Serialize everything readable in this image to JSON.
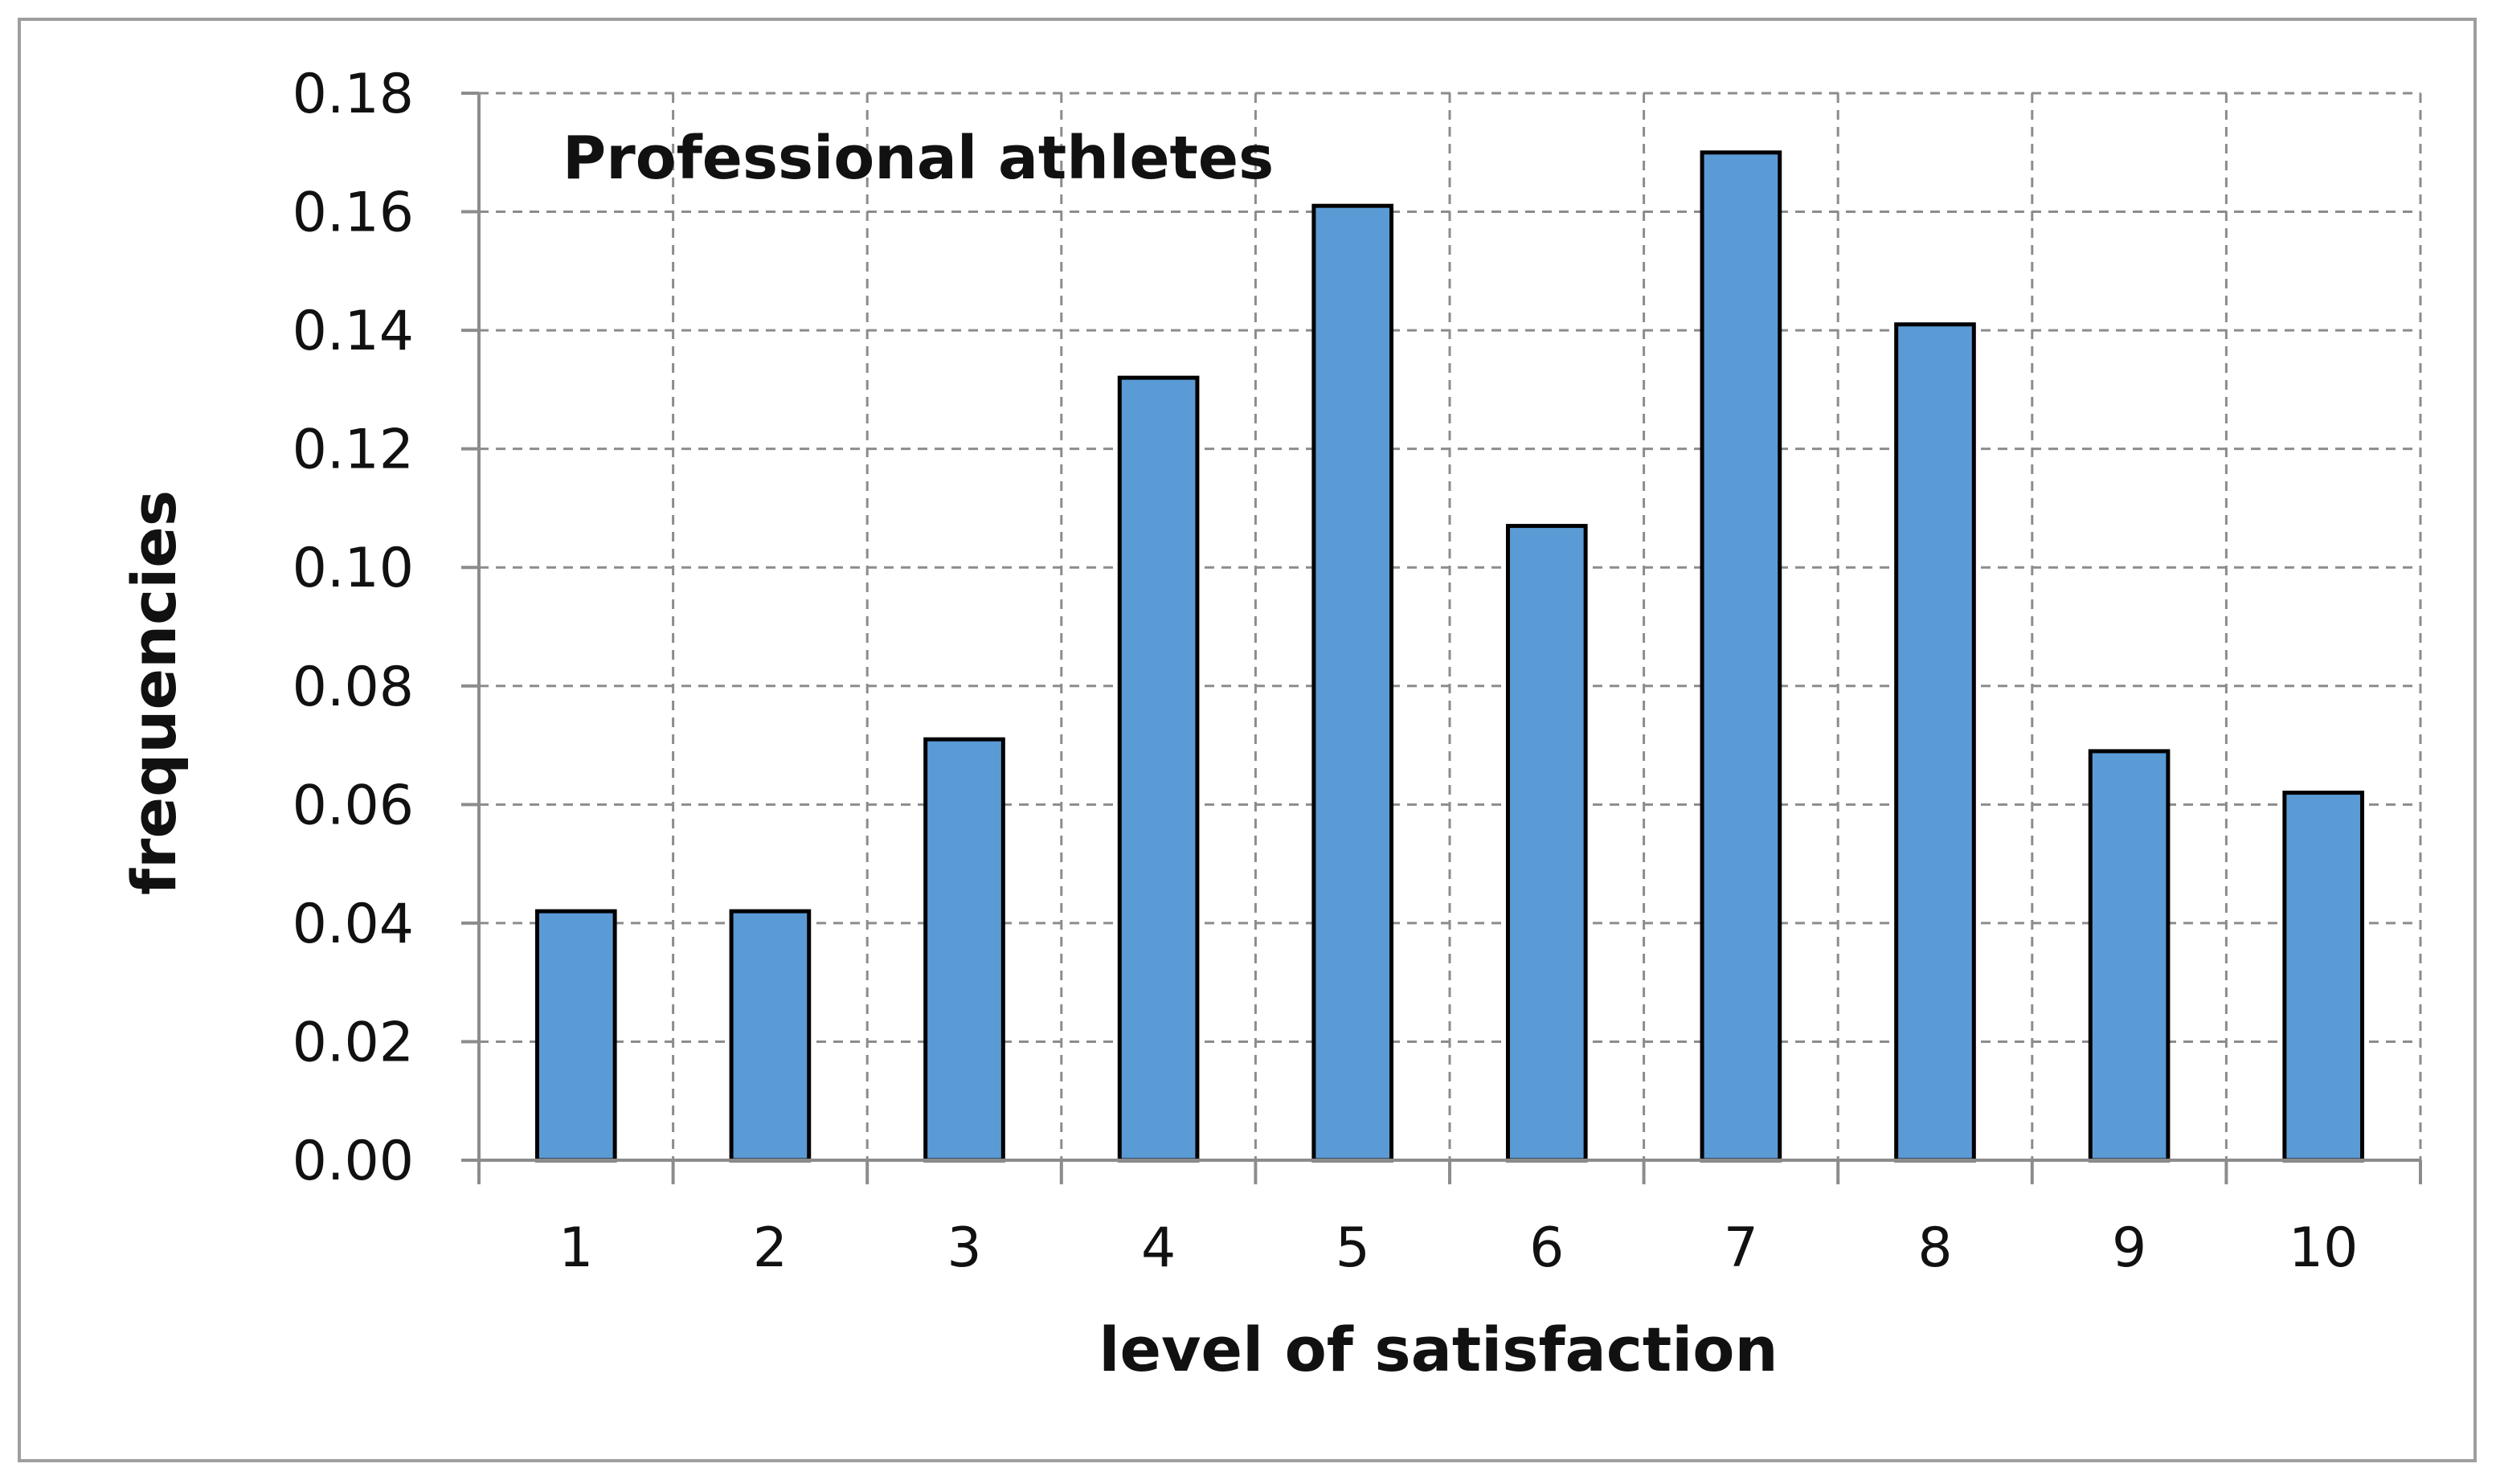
{
  "chart_data": {
    "type": "bar",
    "title": "Professional athletes",
    "xlabel": "level of satisfaction",
    "ylabel": "frequencies",
    "categories": [
      "1",
      "2",
      "3",
      "4",
      "5",
      "6",
      "7",
      "8",
      "9",
      "10"
    ],
    "values": [
      0.042,
      0.042,
      0.071,
      0.132,
      0.161,
      0.107,
      0.17,
      0.141,
      0.069,
      0.062
    ],
    "ylim": [
      0,
      0.18
    ],
    "yticks": [
      "0.00",
      "0.02",
      "0.04",
      "0.06",
      "0.08",
      "0.10",
      "0.12",
      "0.14",
      "0.16",
      "0.18"
    ],
    "grid": true,
    "legend": "none",
    "colors": {
      "bar_fill": "#5b9bd5",
      "bar_stroke": "#000000",
      "grid": "#8c8c8c"
    }
  }
}
